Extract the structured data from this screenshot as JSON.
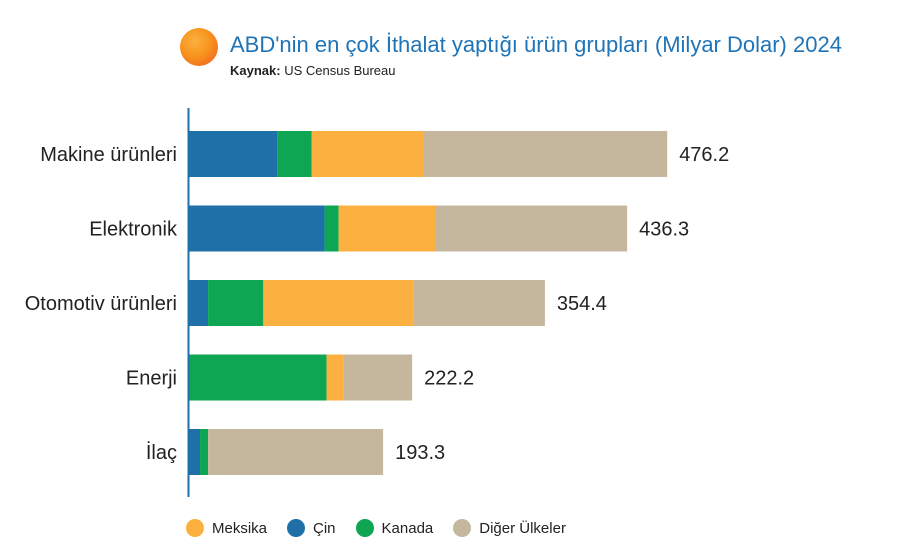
{
  "header": {
    "title": "ABD'nin en çok İthalat yaptığı ürün grupları (Milyar Dolar) 2024",
    "source_label": "Kaynak:",
    "source_value": "US Census Bureau",
    "icon": "sun-circle-icon"
  },
  "chart_data": {
    "type": "bar",
    "orientation": "horizontal",
    "stacked": true,
    "title": "ABD'nin en çok İthalat yaptığı ürün grupları (Milyar Dolar) 2024",
    "categories": [
      "Makine ürünleri",
      "Elektronik",
      "Otomotiv ürünleri",
      "Enerji",
      "İlaç"
    ],
    "series": [
      {
        "name": "Çin",
        "color": "#1f70a8",
        "values": [
          88,
          135,
          19,
          0,
          11
        ]
      },
      {
        "name": "Kanada",
        "color": "#0ea652",
        "values": [
          34,
          14,
          55,
          137,
          8
        ]
      },
      {
        "name": "Meksika",
        "color": "#fbb040",
        "values": [
          112,
          96,
          150,
          17,
          0
        ]
      },
      {
        "name": "Diğer Ülkeler",
        "color": "#c4b79e",
        "values": [
          242.2,
          191.3,
          130.4,
          68.2,
          174.3
        ]
      }
    ],
    "totals": [
      "476.2",
      "436.3",
      "354.4",
      "222.2",
      "193.3"
    ],
    "xlim": [
      0,
      500
    ],
    "grid": false,
    "legend_position": "bottom",
    "legend_order": [
      "Meksika",
      "Çin",
      "Kanada",
      "Diğer Ülkeler"
    ]
  }
}
